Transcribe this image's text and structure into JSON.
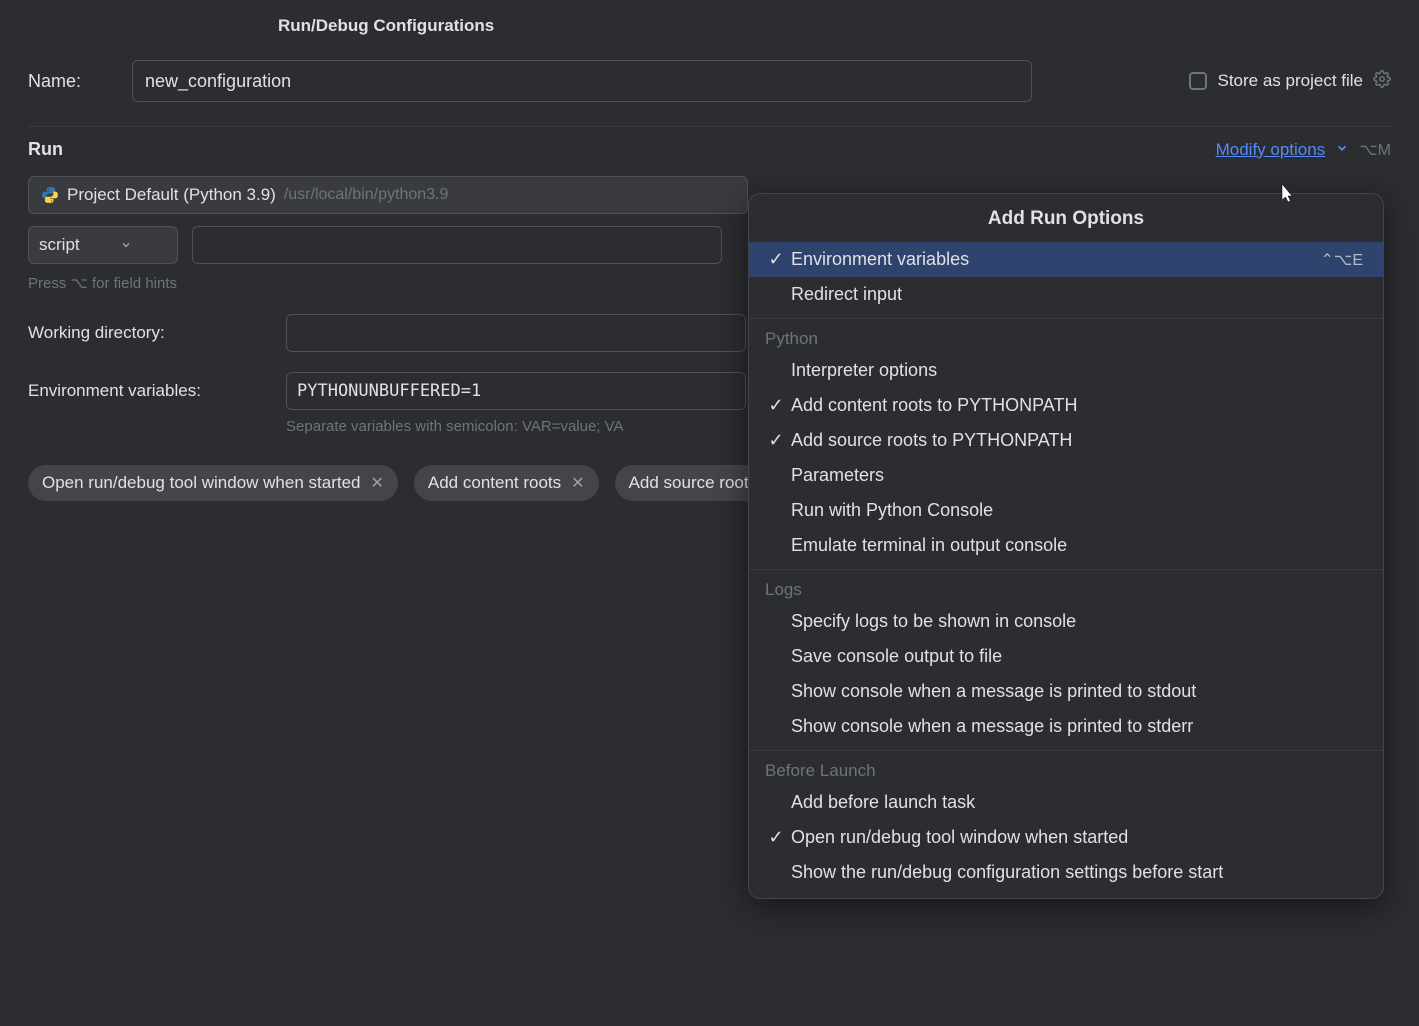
{
  "colors": {
    "background": "#2b2d30",
    "surface": "#393b40",
    "chip": "#43454a",
    "border": "#4e5157",
    "divider": "#393b40",
    "text": "#dfe1e5",
    "muted": "#6f737a",
    "link": "#548af7",
    "selected_bg": "#2e436e"
  },
  "dialog": {
    "title": "Run/Debug Configurations"
  },
  "name": {
    "label": "Name:",
    "value": "new_configuration"
  },
  "store": {
    "label": "Store as project file",
    "checked": false
  },
  "run": {
    "title": "Run",
    "modify_label": "Modify options",
    "modify_shortcut": "⌥M",
    "interpreter": {
      "name": "Project Default (Python 3.9)",
      "path": "/usr/local/bin/python3.9"
    },
    "script_type": "script",
    "field_hint": "Press ⌥ for field hints",
    "working_dir_label": "Working directory:",
    "working_dir_value": "",
    "env_label": "Environment variables:",
    "env_value": "PYTHONUNBUFFERED=1",
    "env_hint": "Separate variables with semicolon: VAR=value; VA"
  },
  "chips": [
    {
      "label": "Open run/debug tool window when started"
    },
    {
      "label": "Add content roots"
    },
    {
      "label": "Add source roots to PYTHONPATH"
    }
  ],
  "popup": {
    "title": "Add Run Options",
    "groups": [
      {
        "header": null,
        "items": [
          {
            "label": "Environment variables",
            "checked": true,
            "selected": true,
            "shortcut": "⌃⌥E"
          },
          {
            "label": "Redirect input",
            "checked": false,
            "selected": false
          }
        ]
      },
      {
        "header": "Python",
        "items": [
          {
            "label": "Interpreter options",
            "checked": false
          },
          {
            "label": "Add content roots to PYTHONPATH",
            "checked": true
          },
          {
            "label": "Add source roots to PYTHONPATH",
            "checked": true
          },
          {
            "label": "Parameters",
            "checked": false
          },
          {
            "label": "Run with Python Console",
            "checked": false
          },
          {
            "label": "Emulate terminal in output console",
            "checked": false
          }
        ]
      },
      {
        "header": "Logs",
        "items": [
          {
            "label": "Specify logs to be shown in console",
            "checked": false
          },
          {
            "label": "Save console output to file",
            "checked": false
          },
          {
            "label": "Show console when a message is printed to stdout",
            "checked": false
          },
          {
            "label": "Show console when a message is printed to stderr",
            "checked": false
          }
        ]
      },
      {
        "header": "Before Launch",
        "items": [
          {
            "label": "Add before launch task",
            "checked": false
          },
          {
            "label": "Open run/debug tool window when started",
            "checked": true
          },
          {
            "label": "Show the run/debug configuration settings before start",
            "checked": false
          }
        ]
      }
    ]
  }
}
